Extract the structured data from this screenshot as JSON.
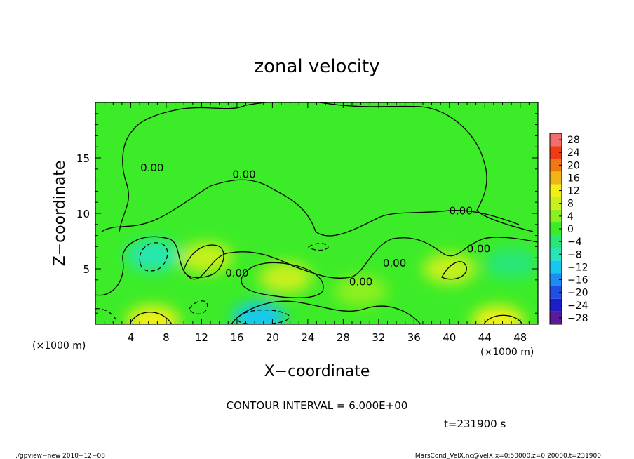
{
  "chart_data": {
    "type": "heatmap",
    "title": "zonal velocity",
    "xlabel": "X−coordinate",
    "ylabel": "Z−coordinate",
    "x_unit": "(×1000 m)",
    "y_unit": "(×1000 m)",
    "xlim": [
      0,
      50
    ],
    "ylim": [
      0,
      20
    ],
    "x_ticks": [
      "4",
      "8",
      "12",
      "16",
      "20",
      "24",
      "28",
      "32",
      "36",
      "40",
      "44",
      "48"
    ],
    "y_ticks": [
      "5",
      "10",
      "15"
    ],
    "x_tick_values": [
      4,
      8,
      12,
      16,
      20,
      24,
      28,
      32,
      36,
      40,
      44,
      48
    ],
    "y_tick_values": [
      5,
      10,
      15
    ],
    "colorbar": {
      "levels": [
        -28,
        -24,
        -20,
        -16,
        -12,
        -8,
        -4,
        0,
        4,
        8,
        12,
        16,
        20,
        24,
        28
      ],
      "labels": [
        "28",
        "24",
        "20",
        "16",
        "12",
        "8",
        "4",
        "0",
        "−4",
        "−8",
        "−12",
        "−16",
        "−20",
        "−24",
        "−28"
      ],
      "colors": [
        "#5a1a9a",
        "#1e1ec8",
        "#1e50e6",
        "#1e8cf0",
        "#14c8f0",
        "#28e6b4",
        "#28e678",
        "#3cec28",
        "#8cf01e",
        "#c8f01e",
        "#f0f014",
        "#f0b414",
        "#f07814",
        "#f03c14",
        "#f06e6e"
      ]
    },
    "field_features": [
      {
        "x": 18.5,
        "z": 0.6,
        "value": -12
      },
      {
        "x": 21.5,
        "z": 4.2,
        "value": 8
      },
      {
        "x": 6.5,
        "z": 0.3,
        "value": 12
      },
      {
        "x": 45.5,
        "z": 0.3,
        "value": 12
      },
      {
        "x": 6.5,
        "z": 6.2,
        "value": -8
      },
      {
        "x": 47,
        "z": 5.5,
        "value": -6
      },
      {
        "x": 12.5,
        "z": 6.0,
        "value": 6
      },
      {
        "x": 40,
        "z": 5.0,
        "value": 6
      },
      {
        "x": 30,
        "z": 3.0,
        "value": 5
      }
    ],
    "contour_labels": [
      {
        "text": "0.00",
        "x": 6.4,
        "z": 13.8
      },
      {
        "text": "0.00",
        "x": 16.8,
        "z": 13.2
      },
      {
        "text": "0.00",
        "x": 16.0,
        "z": 4.3
      },
      {
        "text": "0.00",
        "x": 30.0,
        "z": 3.5
      },
      {
        "text": "0.00",
        "x": 33.8,
        "z": 5.2
      },
      {
        "text": "0.00",
        "x": 41.3,
        "z": 9.9
      },
      {
        "text": "0.00",
        "x": 43.3,
        "z": 6.5
      }
    ],
    "contour_interval": "CONTOUR INTERVAL = 6.000E+00",
    "time": "t=231900 s"
  },
  "footer": {
    "left": "./gpview−new   2010−12−08",
    "right": "MarsCond_VelX.nc@VelX,x=0:50000,z=0:20000,t=231900"
  }
}
